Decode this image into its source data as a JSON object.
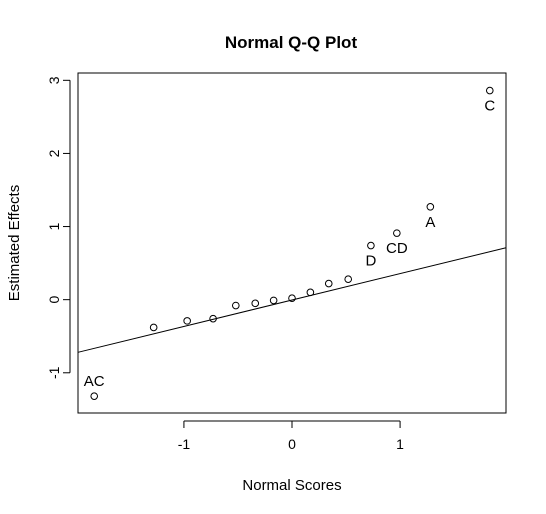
{
  "chart_data": {
    "type": "scatter",
    "title": "Normal Q-Q Plot",
    "xlabel": "Normal Scores",
    "ylabel": "Estimated Effects",
    "xlim": [
      -1.98,
      1.98
    ],
    "ylim": [
      -1.55,
      3.1
    ],
    "xticks": [
      -1,
      0,
      1
    ],
    "yticks": [
      -1,
      0,
      1,
      2,
      3
    ],
    "grid": false,
    "points": [
      {
        "x": -1.83,
        "y": -1.32,
        "label": "AC"
      },
      {
        "x": -1.28,
        "y": -0.38,
        "label": ""
      },
      {
        "x": -0.97,
        "y": -0.29,
        "label": ""
      },
      {
        "x": -0.73,
        "y": -0.26,
        "label": ""
      },
      {
        "x": -0.52,
        "y": -0.08,
        "label": ""
      },
      {
        "x": -0.34,
        "y": -0.05,
        "label": ""
      },
      {
        "x": -0.17,
        "y": -0.01,
        "label": ""
      },
      {
        "x": 0.0,
        "y": 0.02,
        "label": ""
      },
      {
        "x": 0.17,
        "y": 0.1,
        "label": ""
      },
      {
        "x": 0.34,
        "y": 0.22,
        "label": ""
      },
      {
        "x": 0.52,
        "y": 0.28,
        "label": ""
      },
      {
        "x": 0.73,
        "y": 0.74,
        "label": "D"
      },
      {
        "x": 0.97,
        "y": 0.91,
        "label": "CD"
      },
      {
        "x": 1.28,
        "y": 1.27,
        "label": "A"
      },
      {
        "x": 1.83,
        "y": 2.86,
        "label": "C"
      }
    ],
    "reference_line": {
      "x": [
        -1.98,
        1.98
      ],
      "y": [
        -0.72,
        0.71
      ]
    }
  }
}
